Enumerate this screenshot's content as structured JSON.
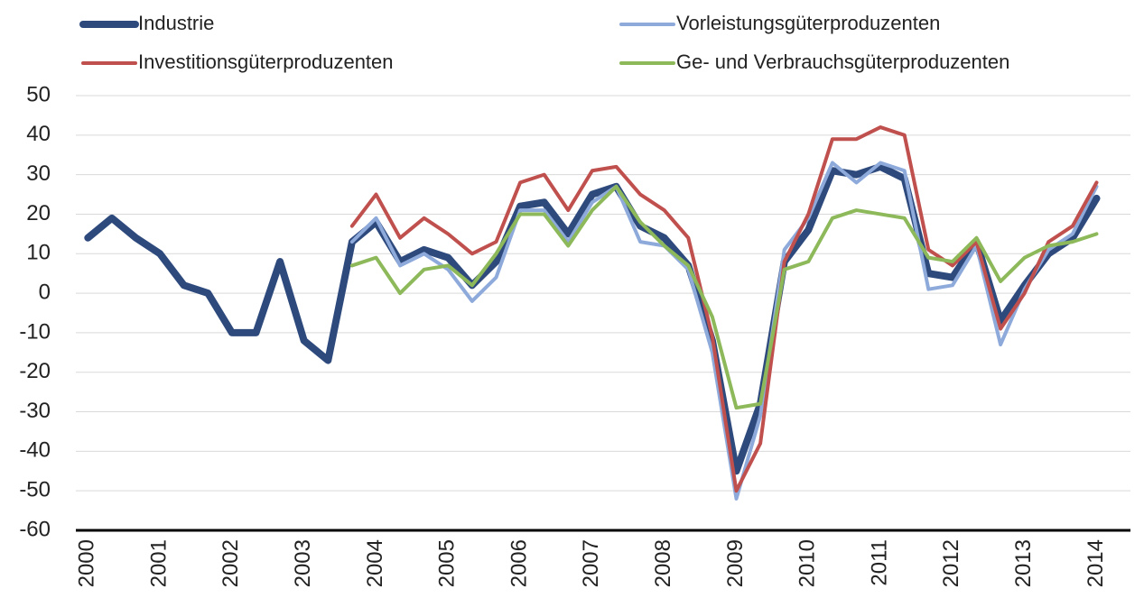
{
  "chart_data": {
    "type": "line",
    "categories": [
      "2000",
      null,
      null,
      "2001",
      null,
      null,
      "2002",
      null,
      null,
      "2003",
      null,
      null,
      "2004",
      null,
      null,
      "2005",
      null,
      null,
      "2006",
      null,
      null,
      "2007",
      null,
      null,
      "2008",
      null,
      null,
      "2009",
      null,
      null,
      "2010",
      null,
      null,
      "2011",
      null,
      null,
      "2012",
      null,
      null,
      "2013",
      null,
      null,
      "2014"
    ],
    "series": [
      {
        "name": "Industrie",
        "color": "#2e4a7d",
        "values": [
          14,
          19,
          14,
          10,
          2,
          0,
          -10,
          -10,
          8,
          -12,
          -17,
          13,
          18,
          8,
          11,
          9,
          2,
          8,
          22,
          23,
          15,
          25,
          27,
          17,
          14,
          7,
          -12,
          -45,
          -28,
          8,
          16,
          31,
          30,
          32,
          29,
          5,
          4,
          13,
          -7,
          2,
          10,
          14,
          24
        ]
      },
      {
        "name": "Vorleistungsgüterproduzenten",
        "color": "#8eaadb",
        "values": [
          null,
          null,
          null,
          null,
          null,
          null,
          null,
          null,
          null,
          null,
          null,
          13,
          19,
          7,
          10,
          6,
          -2,
          4,
          21,
          21,
          13,
          23,
          27,
          13,
          12,
          6,
          -15,
          -52,
          -31,
          11,
          19,
          33,
          28,
          33,
          31,
          1,
          2,
          12,
          -13,
          1,
          11,
          15,
          27
        ]
      },
      {
        "name": "Investitionsgüterproduzenten",
        "color": "#c0504d",
        "values": [
          null,
          null,
          null,
          null,
          null,
          null,
          null,
          null,
          null,
          null,
          null,
          17,
          25,
          14,
          19,
          15,
          10,
          13,
          28,
          30,
          21,
          31,
          32,
          25,
          21,
          14,
          -11,
          -50,
          -38,
          8,
          20,
          39,
          39,
          42,
          40,
          11,
          7,
          13,
          -9,
          0,
          13,
          17,
          28
        ]
      },
      {
        "name": "Ge- und Verbrauchsgüterproduzenten",
        "color": "#8db95a",
        "values": [
          null,
          null,
          null,
          null,
          null,
          null,
          null,
          null,
          null,
          null,
          null,
          7,
          9,
          0,
          6,
          7,
          2,
          10,
          20,
          20,
          12,
          21,
          27,
          18,
          12,
          7,
          -6,
          -29,
          -28,
          6,
          8,
          19,
          21,
          20,
          19,
          9,
          8,
          14,
          3,
          9,
          12,
          13,
          15
        ]
      }
    ],
    "ylim": [
      -60,
      50
    ],
    "yticks": [
      -60,
      -50,
      -40,
      -30,
      -20,
      -10,
      0,
      10,
      20,
      30,
      40,
      50
    ],
    "grid": true
  }
}
